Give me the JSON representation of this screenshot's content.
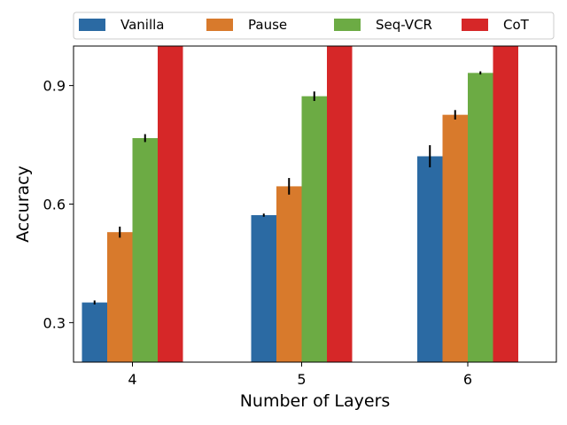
{
  "chart_data": {
    "type": "bar",
    "title": "",
    "xlabel": "Number of Layers",
    "ylabel": "Accuracy",
    "categories": [
      "4",
      "5",
      "6"
    ],
    "ylim": [
      0.2,
      1.0
    ],
    "yticks": [
      0.3,
      0.6,
      0.9
    ],
    "ytick_labels": [
      "0.3",
      "0.6",
      "0.9"
    ],
    "grid": false,
    "legend_position": "top, above plot",
    "series": [
      {
        "name": "Vanilla",
        "color": "#2b6aa3",
        "values": [
          0.351,
          0.572,
          0.721
        ],
        "errors": [
          0.005,
          0.004,
          0.028
        ]
      },
      {
        "name": "Pause",
        "color": "#d87a2c",
        "values": [
          0.529,
          0.645,
          0.826
        ],
        "errors": [
          0.014,
          0.021,
          0.012
        ]
      },
      {
        "name": "Seq-VCR",
        "color": "#6cab44",
        "values": [
          0.767,
          0.873,
          0.932
        ],
        "errors": [
          0.01,
          0.012,
          0.004
        ]
      },
      {
        "name": "CoT",
        "color": "#d62728",
        "values": [
          1.0,
          1.0,
          1.0
        ],
        "errors": [
          0,
          0,
          0
        ]
      }
    ]
  }
}
